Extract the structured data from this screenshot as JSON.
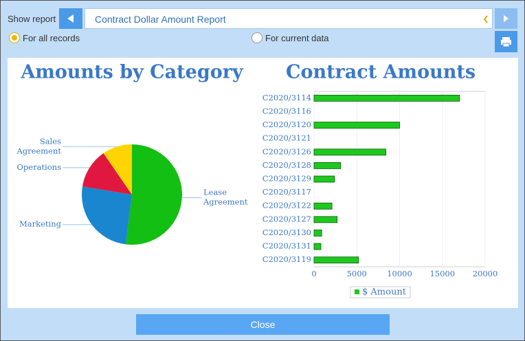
{
  "toolbar": {
    "show_report_label": "Show report",
    "report_name": "Contract Dollar Amount Report",
    "options": [
      "For all records",
      "For current data"
    ]
  },
  "chart_data": [
    {
      "type": "pie",
      "title": "Amounts by Category",
      "categories": [
        "Lease Agreement",
        "Marketing",
        "Operations",
        "Sales Agreement"
      ],
      "values": [
        27600,
        13600,
        6800,
        5100
      ],
      "colors": [
        "#12bf12",
        "#1a86cf",
        "#e0183f",
        "#ffd400"
      ]
    },
    {
      "type": "bar",
      "orientation": "horizontal",
      "title": "Contract Amounts",
      "categories": [
        "C2020/3114",
        "C2020/3116",
        "C2020/3120",
        "C2020/3121",
        "C2020/3126",
        "C2020/3128",
        "C2020/3129",
        "C2020/3117",
        "C2020/3122",
        "C2020/3127",
        "C2020/3130",
        "C2020/3131",
        "C2020/3119"
      ],
      "series": [
        {
          "name": "$ Amount",
          "color": "#1ec81e",
          "values": [
            17000,
            0,
            10000,
            0,
            8400,
            3100,
            2400,
            0,
            2100,
            2700,
            900,
            800,
            5200
          ]
        }
      ],
      "xlim": [
        0,
        20000
      ],
      "xticks": [
        0,
        5000,
        10000,
        15000,
        20000
      ],
      "grid": true,
      "legend": "bottom"
    }
  ],
  "close_button": "Close"
}
